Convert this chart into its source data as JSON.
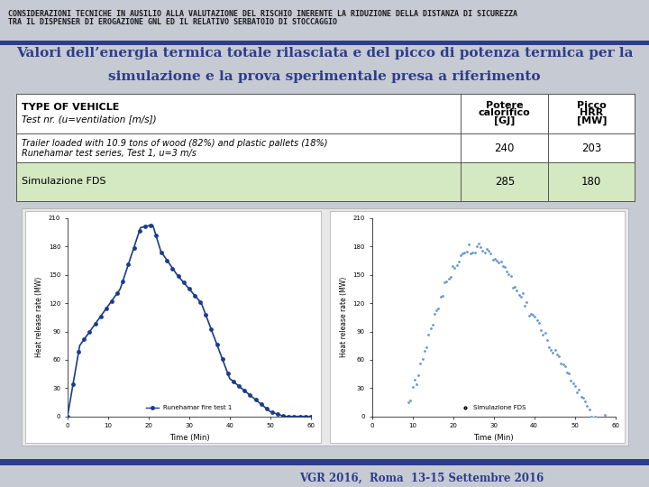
{
  "header_text1": "CONSIDERAZIONI TECNICHE IN AUSILIO ALLA VALUTAZIONE DEL RISCHIO INERENTE LA RIDUZIONE DELLA DISTANZA DI SICUREZZA",
  "header_text2": "TRA IL DISPENSER DI EROGAZIONE GNL ED IL RELATIVO SERBATOIO DI STOCCAGGIO",
  "footer_text": "VGR 2016,  Roma  13-15 Settembre 2016",
  "bg_color": "#c5cad3",
  "blue_bar_color": "#2e3c8c",
  "title_color": "#2e3c8c",
  "row2_bg": "#d4e8c2",
  "logo_color": "#b8bdc6",
  "header_fontsize": 6.0,
  "title_fontsize": 11.0,
  "footer_fontsize": 8.5
}
